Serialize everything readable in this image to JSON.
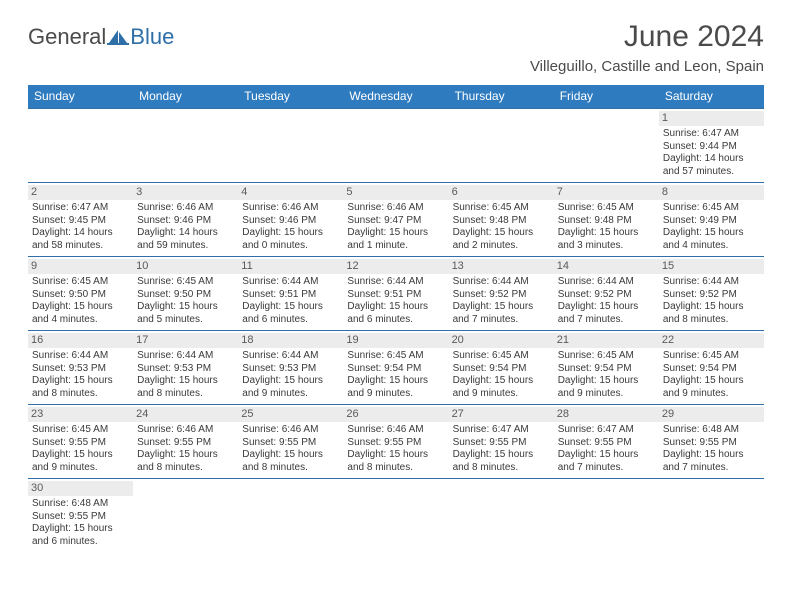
{
  "brand": {
    "general": "General",
    "blue": "Blue",
    "sail_color": "#2f6fa8",
    "general_color": "#4b4b4b"
  },
  "header": {
    "title": "June 2024",
    "location": "Villeguillo, Castille and Leon, Spain"
  },
  "styling": {
    "header_bg": "#2f7bbf",
    "header_text": "#ffffff",
    "border_color": "#2f6fa8",
    "daynum_bg": "#ececec",
    "daynum_text": "#5a5a5a",
    "body_text": "#3a3a3a",
    "page_bg": "#ffffff",
    "body_font_size": 10,
    "dow_font_size": 12,
    "title_font_size": 30,
    "location_font_size": 15
  },
  "days_of_week": [
    "Sunday",
    "Monday",
    "Tuesday",
    "Wednesday",
    "Thursday",
    "Friday",
    "Saturday"
  ],
  "weeks": [
    [
      null,
      null,
      null,
      null,
      null,
      null,
      {
        "n": "1",
        "sunrise": "Sunrise: 6:47 AM",
        "sunset": "Sunset: 9:44 PM",
        "daylight1": "Daylight: 14 hours",
        "daylight2": "and 57 minutes."
      }
    ],
    [
      {
        "n": "2",
        "sunrise": "Sunrise: 6:47 AM",
        "sunset": "Sunset: 9:45 PM",
        "daylight1": "Daylight: 14 hours",
        "daylight2": "and 58 minutes."
      },
      {
        "n": "3",
        "sunrise": "Sunrise: 6:46 AM",
        "sunset": "Sunset: 9:46 PM",
        "daylight1": "Daylight: 14 hours",
        "daylight2": "and 59 minutes."
      },
      {
        "n": "4",
        "sunrise": "Sunrise: 6:46 AM",
        "sunset": "Sunset: 9:46 PM",
        "daylight1": "Daylight: 15 hours",
        "daylight2": "and 0 minutes."
      },
      {
        "n": "5",
        "sunrise": "Sunrise: 6:46 AM",
        "sunset": "Sunset: 9:47 PM",
        "daylight1": "Daylight: 15 hours",
        "daylight2": "and 1 minute."
      },
      {
        "n": "6",
        "sunrise": "Sunrise: 6:45 AM",
        "sunset": "Sunset: 9:48 PM",
        "daylight1": "Daylight: 15 hours",
        "daylight2": "and 2 minutes."
      },
      {
        "n": "7",
        "sunrise": "Sunrise: 6:45 AM",
        "sunset": "Sunset: 9:48 PM",
        "daylight1": "Daylight: 15 hours",
        "daylight2": "and 3 minutes."
      },
      {
        "n": "8",
        "sunrise": "Sunrise: 6:45 AM",
        "sunset": "Sunset: 9:49 PM",
        "daylight1": "Daylight: 15 hours",
        "daylight2": "and 4 minutes."
      }
    ],
    [
      {
        "n": "9",
        "sunrise": "Sunrise: 6:45 AM",
        "sunset": "Sunset: 9:50 PM",
        "daylight1": "Daylight: 15 hours",
        "daylight2": "and 4 minutes."
      },
      {
        "n": "10",
        "sunrise": "Sunrise: 6:45 AM",
        "sunset": "Sunset: 9:50 PM",
        "daylight1": "Daylight: 15 hours",
        "daylight2": "and 5 minutes."
      },
      {
        "n": "11",
        "sunrise": "Sunrise: 6:44 AM",
        "sunset": "Sunset: 9:51 PM",
        "daylight1": "Daylight: 15 hours",
        "daylight2": "and 6 minutes."
      },
      {
        "n": "12",
        "sunrise": "Sunrise: 6:44 AM",
        "sunset": "Sunset: 9:51 PM",
        "daylight1": "Daylight: 15 hours",
        "daylight2": "and 6 minutes."
      },
      {
        "n": "13",
        "sunrise": "Sunrise: 6:44 AM",
        "sunset": "Sunset: 9:52 PM",
        "daylight1": "Daylight: 15 hours",
        "daylight2": "and 7 minutes."
      },
      {
        "n": "14",
        "sunrise": "Sunrise: 6:44 AM",
        "sunset": "Sunset: 9:52 PM",
        "daylight1": "Daylight: 15 hours",
        "daylight2": "and 7 minutes."
      },
      {
        "n": "15",
        "sunrise": "Sunrise: 6:44 AM",
        "sunset": "Sunset: 9:52 PM",
        "daylight1": "Daylight: 15 hours",
        "daylight2": "and 8 minutes."
      }
    ],
    [
      {
        "n": "16",
        "sunrise": "Sunrise: 6:44 AM",
        "sunset": "Sunset: 9:53 PM",
        "daylight1": "Daylight: 15 hours",
        "daylight2": "and 8 minutes."
      },
      {
        "n": "17",
        "sunrise": "Sunrise: 6:44 AM",
        "sunset": "Sunset: 9:53 PM",
        "daylight1": "Daylight: 15 hours",
        "daylight2": "and 8 minutes."
      },
      {
        "n": "18",
        "sunrise": "Sunrise: 6:44 AM",
        "sunset": "Sunset: 9:53 PM",
        "daylight1": "Daylight: 15 hours",
        "daylight2": "and 9 minutes."
      },
      {
        "n": "19",
        "sunrise": "Sunrise: 6:45 AM",
        "sunset": "Sunset: 9:54 PM",
        "daylight1": "Daylight: 15 hours",
        "daylight2": "and 9 minutes."
      },
      {
        "n": "20",
        "sunrise": "Sunrise: 6:45 AM",
        "sunset": "Sunset: 9:54 PM",
        "daylight1": "Daylight: 15 hours",
        "daylight2": "and 9 minutes."
      },
      {
        "n": "21",
        "sunrise": "Sunrise: 6:45 AM",
        "sunset": "Sunset: 9:54 PM",
        "daylight1": "Daylight: 15 hours",
        "daylight2": "and 9 minutes."
      },
      {
        "n": "22",
        "sunrise": "Sunrise: 6:45 AM",
        "sunset": "Sunset: 9:54 PM",
        "daylight1": "Daylight: 15 hours",
        "daylight2": "and 9 minutes."
      }
    ],
    [
      {
        "n": "23",
        "sunrise": "Sunrise: 6:45 AM",
        "sunset": "Sunset: 9:55 PM",
        "daylight1": "Daylight: 15 hours",
        "daylight2": "and 9 minutes."
      },
      {
        "n": "24",
        "sunrise": "Sunrise: 6:46 AM",
        "sunset": "Sunset: 9:55 PM",
        "daylight1": "Daylight: 15 hours",
        "daylight2": "and 8 minutes."
      },
      {
        "n": "25",
        "sunrise": "Sunrise: 6:46 AM",
        "sunset": "Sunset: 9:55 PM",
        "daylight1": "Daylight: 15 hours",
        "daylight2": "and 8 minutes."
      },
      {
        "n": "26",
        "sunrise": "Sunrise: 6:46 AM",
        "sunset": "Sunset: 9:55 PM",
        "daylight1": "Daylight: 15 hours",
        "daylight2": "and 8 minutes."
      },
      {
        "n": "27",
        "sunrise": "Sunrise: 6:47 AM",
        "sunset": "Sunset: 9:55 PM",
        "daylight1": "Daylight: 15 hours",
        "daylight2": "and 8 minutes."
      },
      {
        "n": "28",
        "sunrise": "Sunrise: 6:47 AM",
        "sunset": "Sunset: 9:55 PM",
        "daylight1": "Daylight: 15 hours",
        "daylight2": "and 7 minutes."
      },
      {
        "n": "29",
        "sunrise": "Sunrise: 6:48 AM",
        "sunset": "Sunset: 9:55 PM",
        "daylight1": "Daylight: 15 hours",
        "daylight2": "and 7 minutes."
      }
    ],
    [
      {
        "n": "30",
        "sunrise": "Sunrise: 6:48 AM",
        "sunset": "Sunset: 9:55 PM",
        "daylight1": "Daylight: 15 hours",
        "daylight2": "and 6 minutes."
      },
      null,
      null,
      null,
      null,
      null,
      null
    ]
  ]
}
